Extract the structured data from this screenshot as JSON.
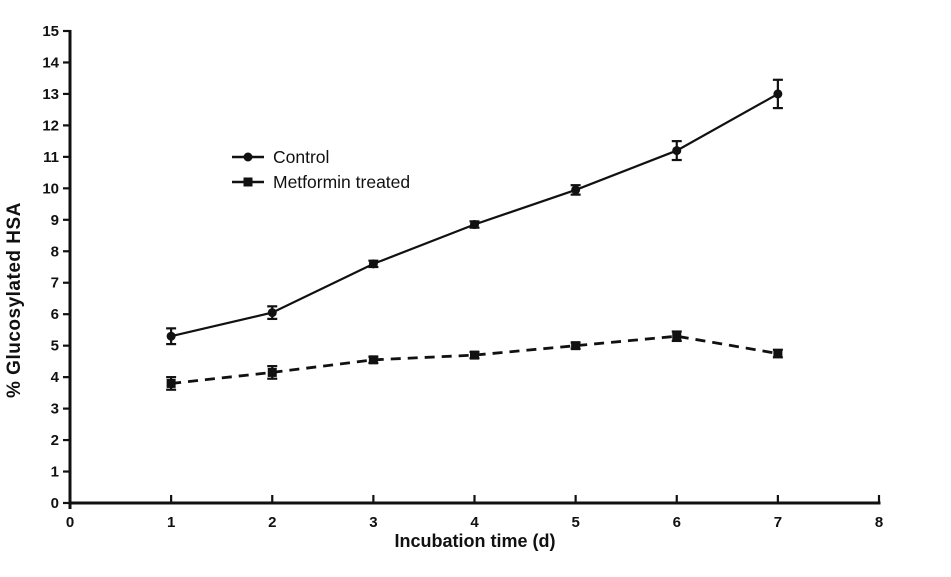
{
  "figure": {
    "background_color": "#ffffff",
    "ink_color": "#111111"
  },
  "chart_data": {
    "type": "line",
    "title": "",
    "xlabel": "Incubation time (d)",
    "ylabel": "% Glucosylated HSA",
    "xlim": [
      0,
      8
    ],
    "ylim": [
      0,
      15
    ],
    "xticks": [
      0,
      1,
      2,
      3,
      4,
      5,
      6,
      7,
      8
    ],
    "yticks": [
      0,
      1,
      2,
      3,
      4,
      5,
      6,
      7,
      8,
      9,
      10,
      11,
      12,
      13,
      14,
      15
    ],
    "grid": false,
    "legend_position": "inside-upper-left",
    "error_bars": true,
    "x": [
      1,
      2,
      3,
      4,
      5,
      6,
      7
    ],
    "series": [
      {
        "name": "Control",
        "marker": "circle",
        "line_style": "solid",
        "color": "#111111",
        "values": [
          5.3,
          6.05,
          7.6,
          8.85,
          9.95,
          11.2,
          13.0
        ],
        "errors": [
          0.25,
          0.2,
          0.1,
          0.1,
          0.15,
          0.3,
          0.45
        ]
      },
      {
        "name": "Metformin treated",
        "marker": "square",
        "line_style": "dashed",
        "color": "#111111",
        "values": [
          3.8,
          4.15,
          4.55,
          4.7,
          5.0,
          5.3,
          4.75
        ],
        "errors": [
          0.2,
          0.2,
          0.1,
          0.1,
          0.1,
          0.15,
          0.12
        ]
      }
    ]
  }
}
